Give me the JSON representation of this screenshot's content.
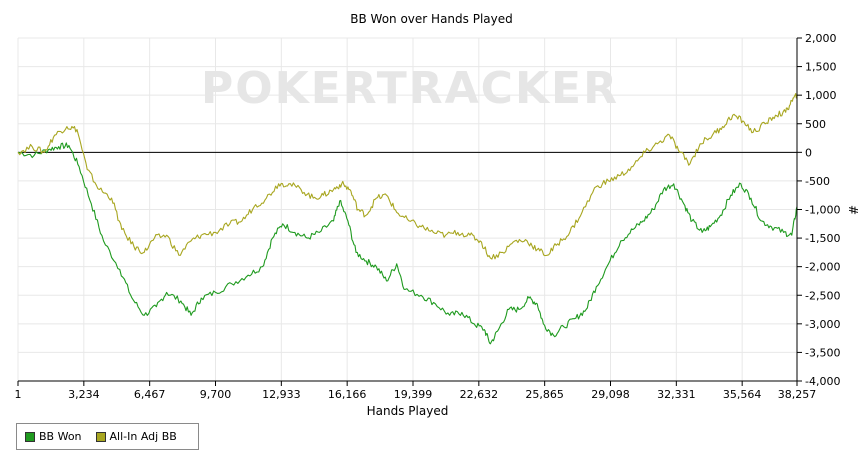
{
  "chart_data": {
    "type": "line",
    "title": "BB Won over Hands Played",
    "xlabel": "Hands Played",
    "ylabel": "#",
    "watermark": "POKERTRACKER",
    "xlim": [
      1,
      38257
    ],
    "ylim": [
      -4000,
      2000
    ],
    "x_ticks": [
      1,
      3234,
      6467,
      9700,
      12933,
      16166,
      19399,
      22632,
      25865,
      29098,
      32331,
      35564,
      38257
    ],
    "x_tick_labels": [
      "1",
      "3,234",
      "6,467",
      "9,700",
      "12,933",
      "16,166",
      "19,399",
      "22,632",
      "25,865",
      "29,098",
      "32,331",
      "35,564",
      "38,257"
    ],
    "y_ticks": [
      2000,
      1500,
      1000,
      500,
      0,
      -500,
      -1000,
      -1500,
      -2000,
      -2500,
      -3000,
      -3500,
      -4000
    ],
    "y_tick_labels": [
      "2,000",
      "1,500",
      "1,000",
      "500",
      "0",
      "-500",
      "-1,000",
      "-1,500",
      "-2,000",
      "-2,500",
      "-3,000",
      "-3,500",
      "-4,000"
    ],
    "grid": true,
    "legend_position": "bottom-left",
    "series": [
      {
        "name": "BB Won",
        "color": "#1f9a1f",
        "points": [
          [
            1,
            0
          ],
          [
            800,
            -50
          ],
          [
            1500,
            50
          ],
          [
            2000,
            100
          ],
          [
            2500,
            120
          ],
          [
            3000,
            -250
          ],
          [
            3600,
            -900
          ],
          [
            4200,
            -1550
          ],
          [
            5000,
            -2050
          ],
          [
            5600,
            -2550
          ],
          [
            6200,
            -2850
          ],
          [
            6800,
            -2700
          ],
          [
            7300,
            -2450
          ],
          [
            8000,
            -2600
          ],
          [
            8500,
            -2850
          ],
          [
            9000,
            -2550
          ],
          [
            9700,
            -2450
          ],
          [
            10500,
            -2300
          ],
          [
            11300,
            -2150
          ],
          [
            12000,
            -2000
          ],
          [
            12500,
            -1500
          ],
          [
            13000,
            -1250
          ],
          [
            13600,
            -1400
          ],
          [
            14200,
            -1500
          ],
          [
            14800,
            -1400
          ],
          [
            15500,
            -1200
          ],
          [
            15800,
            -850
          ],
          [
            16200,
            -1200
          ],
          [
            16600,
            -1750
          ],
          [
            17100,
            -1900
          ],
          [
            17600,
            -2000
          ],
          [
            18100,
            -2250
          ],
          [
            18600,
            -1950
          ],
          [
            19000,
            -2400
          ],
          [
            19800,
            -2500
          ],
          [
            20500,
            -2650
          ],
          [
            21200,
            -2850
          ],
          [
            21800,
            -2800
          ],
          [
            22400,
            -3000
          ],
          [
            22900,
            -3100
          ],
          [
            23200,
            -3350
          ],
          [
            23600,
            -3100
          ],
          [
            24100,
            -2750
          ],
          [
            24600,
            -2750
          ],
          [
            25100,
            -2550
          ],
          [
            25500,
            -2650
          ],
          [
            25800,
            -3000
          ],
          [
            26300,
            -3200
          ],
          [
            26800,
            -3050
          ],
          [
            27400,
            -2900
          ],
          [
            27900,
            -2750
          ],
          [
            28400,
            -2350
          ],
          [
            29000,
            -1950
          ],
          [
            29600,
            -1550
          ],
          [
            30200,
            -1350
          ],
          [
            30700,
            -1200
          ],
          [
            31200,
            -1000
          ],
          [
            31700,
            -650
          ],
          [
            32200,
            -550
          ],
          [
            32700,
            -900
          ],
          [
            33100,
            -1200
          ],
          [
            33600,
            -1400
          ],
          [
            34000,
            -1300
          ],
          [
            34500,
            -1100
          ],
          [
            35000,
            -750
          ],
          [
            35500,
            -550
          ],
          [
            36000,
            -800
          ],
          [
            36500,
            -1200
          ],
          [
            37000,
            -1300
          ],
          [
            37600,
            -1400
          ],
          [
            38000,
            -1450
          ],
          [
            38257,
            -950
          ]
        ]
      },
      {
        "name": "All-In Adj BB",
        "color": "#a8a620",
        "points": [
          [
            1,
            0
          ],
          [
            700,
            100
          ],
          [
            1300,
            0
          ],
          [
            1800,
            300
          ],
          [
            2400,
            450
          ],
          [
            2900,
            400
          ],
          [
            3400,
            -300
          ],
          [
            4000,
            -650
          ],
          [
            4600,
            -800
          ],
          [
            5100,
            -1350
          ],
          [
            5700,
            -1650
          ],
          [
            6200,
            -1750
          ],
          [
            6700,
            -1500
          ],
          [
            7300,
            -1450
          ],
          [
            7900,
            -1800
          ],
          [
            8500,
            -1550
          ],
          [
            9000,
            -1450
          ],
          [
            9700,
            -1400
          ],
          [
            10400,
            -1250
          ],
          [
            11000,
            -1200
          ],
          [
            11600,
            -950
          ],
          [
            12200,
            -800
          ],
          [
            12800,
            -550
          ],
          [
            13300,
            -550
          ],
          [
            13900,
            -650
          ],
          [
            14500,
            -800
          ],
          [
            15000,
            -750
          ],
          [
            15500,
            -650
          ],
          [
            15900,
            -550
          ],
          [
            16300,
            -650
          ],
          [
            16700,
            -1000
          ],
          [
            17100,
            -1100
          ],
          [
            17600,
            -800
          ],
          [
            18100,
            -750
          ],
          [
            18600,
            -1050
          ],
          [
            19200,
            -1200
          ],
          [
            19800,
            -1300
          ],
          [
            20400,
            -1400
          ],
          [
            21000,
            -1450
          ],
          [
            21600,
            -1400
          ],
          [
            22200,
            -1450
          ],
          [
            22700,
            -1550
          ],
          [
            23200,
            -1850
          ],
          [
            23800,
            -1750
          ],
          [
            24400,
            -1550
          ],
          [
            25000,
            -1550
          ],
          [
            25500,
            -1700
          ],
          [
            26000,
            -1800
          ],
          [
            26500,
            -1600
          ],
          [
            27100,
            -1400
          ],
          [
            27700,
            -1050
          ],
          [
            28400,
            -600
          ],
          [
            29000,
            -500
          ],
          [
            29600,
            -400
          ],
          [
            30200,
            -250
          ],
          [
            30800,
            0
          ],
          [
            31400,
            150
          ],
          [
            32000,
            300
          ],
          [
            32500,
            0
          ],
          [
            33000,
            -200
          ],
          [
            33500,
            150
          ],
          [
            34100,
            300
          ],
          [
            34600,
            450
          ],
          [
            35100,
            650
          ],
          [
            35600,
            550
          ],
          [
            36100,
            350
          ],
          [
            36700,
            500
          ],
          [
            37200,
            650
          ],
          [
            37700,
            700
          ],
          [
            38000,
            900
          ],
          [
            38257,
            1000
          ]
        ]
      }
    ]
  }
}
